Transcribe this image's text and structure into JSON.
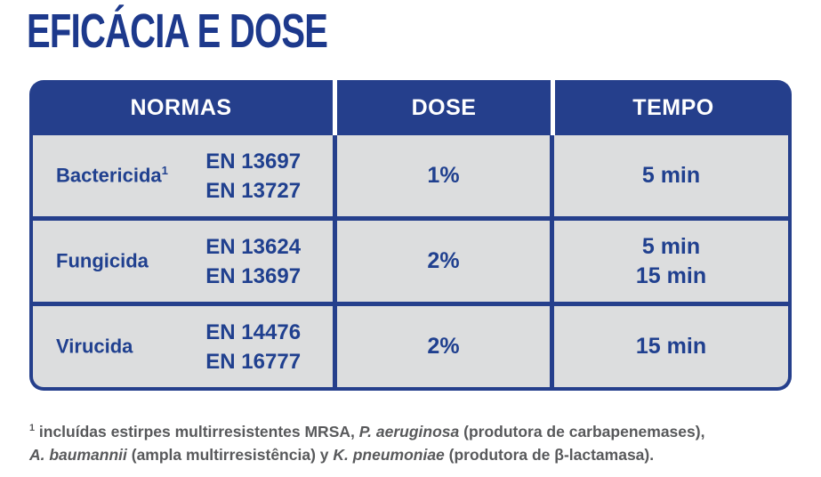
{
  "page": {
    "title": "EFICÁCIA E DOSE"
  },
  "colors": {
    "brand_blue": "#253f8c",
    "title_blue": "#1d398c",
    "cell_text_blue": "#20408f",
    "cell_gray": "#dcddde",
    "header_text": "#ffffff",
    "footnote_gray": "#58595b"
  },
  "table": {
    "headers": [
      "NORMAS",
      "DOSE",
      "TEMPO"
    ],
    "rows": [
      {
        "agent": "Bactericida",
        "agent_sup": "1",
        "norms": [
          "EN 13697",
          "EN 13727"
        ],
        "dose": "1%",
        "times": [
          "5 min"
        ]
      },
      {
        "agent": "Fungicida",
        "agent_sup": "",
        "norms": [
          "EN 13624",
          "EN 13697"
        ],
        "dose": "2%",
        "times": [
          "5 min",
          "15 min"
        ]
      },
      {
        "agent": "Virucida",
        "agent_sup": "",
        "norms": [
          "EN 14476",
          "EN 16777"
        ],
        "dose": "2%",
        "times": [
          "15 min"
        ]
      }
    ]
  },
  "footnote": {
    "sup": "1",
    "l1_a": " incluídas estirpes multirresistentes MRSA, ",
    "l1_b": "P. aeruginosa",
    "l1_c": " (produtora de carbapenemases),",
    "l2_a": "A. baumannii",
    "l2_b": " (ampla multirresistência) y ",
    "l2_c": "K. pneumoniae",
    "l2_d": " (produtora de β-lactamasa)."
  }
}
